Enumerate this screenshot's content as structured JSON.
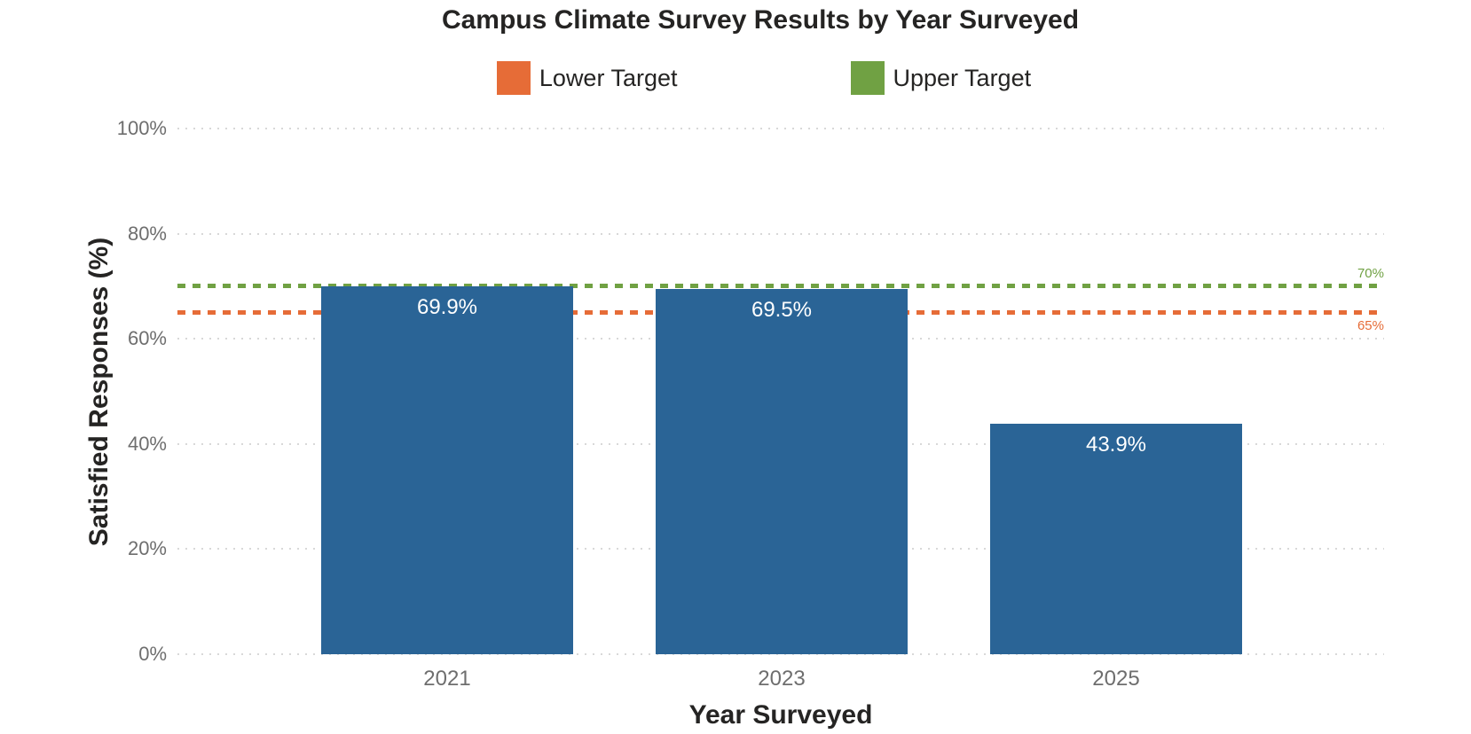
{
  "colors": {
    "bar": "#2A6496",
    "bar_label": "#FFFFFF",
    "lower_target": "#E66C37",
    "upper_target": "#70A143",
    "grid": "#D8D8D8",
    "tick_text": "#6E6E6E",
    "title_text": "#252423"
  },
  "chart_data": {
    "type": "bar",
    "title": "Campus Climate Survey Results by Year Surveyed",
    "xlabel": "Year Surveyed",
    "ylabel": "Satisfied Responses (%)",
    "categories": [
      "2021",
      "2023",
      "2025"
    ],
    "values": [
      69.9,
      69.5,
      43.9
    ],
    "bar_value_labels": [
      "69.9%",
      "69.5%",
      "43.9%"
    ],
    "ylim": [
      0,
      100
    ],
    "ytick_values": [
      0,
      20,
      40,
      60,
      80,
      100
    ],
    "ytick_labels": [
      "0%",
      "20%",
      "40%",
      "60%",
      "80%",
      "100%"
    ],
    "grid": true,
    "bar_color": "#2A6496",
    "legend_position": "top",
    "legend": [
      {
        "label": "Lower Target",
        "color": "#E66C37"
      },
      {
        "label": "Upper Target",
        "color": "#70A143"
      }
    ],
    "reference_lines": [
      {
        "name": "Upper Target",
        "value": 70,
        "label": "70%",
        "color": "#70A143",
        "style": "dotted",
        "label_position": "above"
      },
      {
        "name": "Lower Target",
        "value": 65,
        "label": "65%",
        "color": "#E66C37",
        "style": "dotted",
        "label_position": "below"
      }
    ]
  }
}
